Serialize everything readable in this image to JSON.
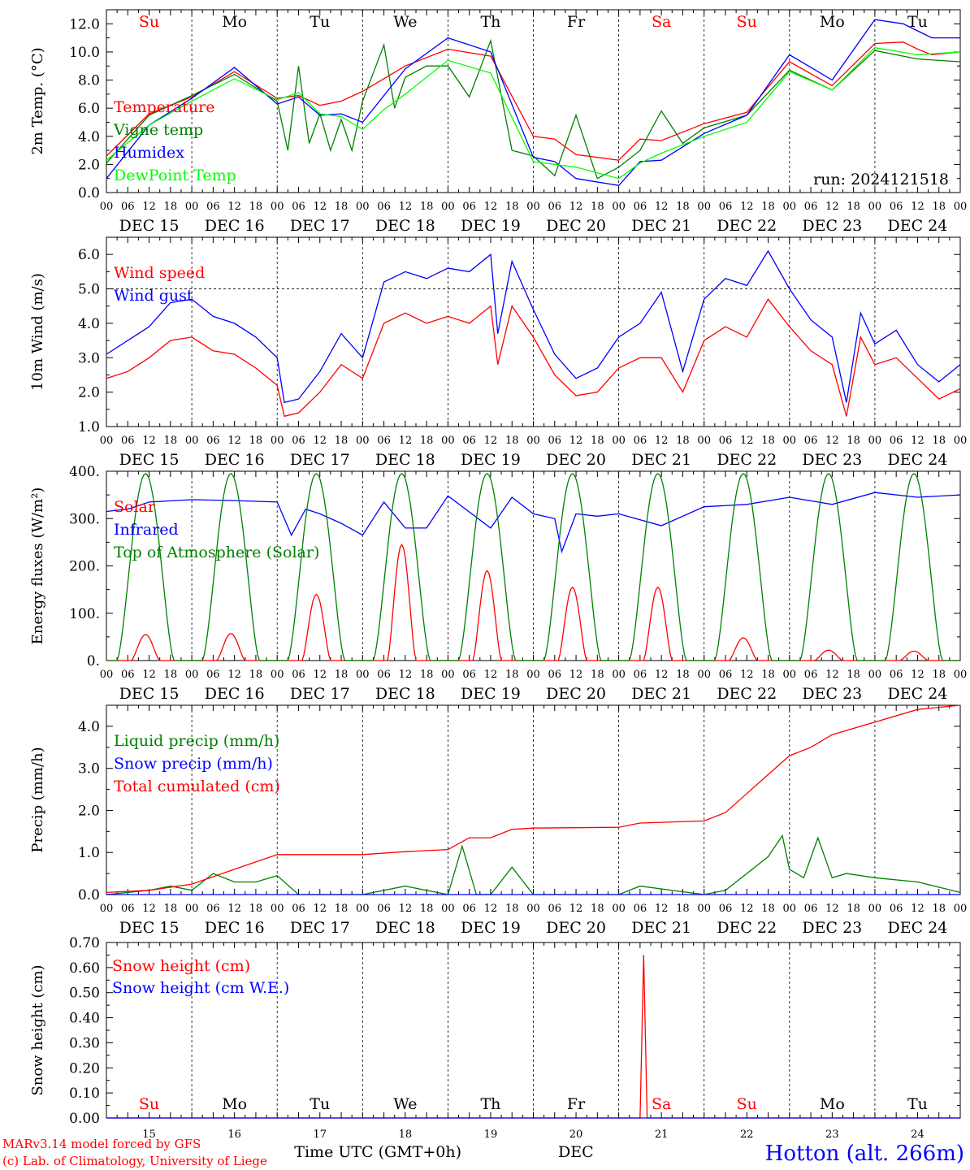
{
  "footer": {
    "credit_line1": "MARv3.14 model forced by GFS",
    "credit_line2": "(c) Lab. of Climatology, University of Liege",
    "xlabel": "Time UTC (GMT+0h)",
    "month": "DEC",
    "station": "Hotton (alt. 266m)",
    "run": "run: 2024121518"
  },
  "time_axis": {
    "hours": [
      "00",
      "06",
      "12",
      "18"
    ],
    "day_labels": [
      "DEC 15",
      "DEC 16",
      "DEC 17",
      "DEC 18",
      "DEC 19",
      "DEC 20",
      "DEC 21",
      "DEC 22",
      "DEC 23",
      "DEC 24"
    ],
    "day_numbers": [
      "15",
      "16",
      "17",
      "18",
      "19",
      "20",
      "21",
      "22",
      "23",
      "24"
    ],
    "weekdays": [
      "Su",
      "Mo",
      "Tu",
      "We",
      "Th",
      "Fr",
      "Sa",
      "Su",
      "Mo",
      "Tu"
    ],
    "weekend_color": "#ff0000",
    "weekday_color": "#000000"
  },
  "chart_data": [
    {
      "type": "line",
      "ylabel": "2m Temp. (°C)",
      "ylim": [
        0,
        13
      ],
      "yticks": [
        "0.0",
        "2.0",
        "4.0",
        "6.0",
        "8.0",
        "10.0",
        "12.0"
      ],
      "grid": "vertical dashed at day boundaries",
      "legend_position": "left",
      "x_unit": "hours since DEC 15 00 UTC",
      "series": [
        {
          "name": "Temperature",
          "color": "#ff0000",
          "x": [
            0,
            12,
            24,
            36,
            48,
            54,
            60,
            66,
            72,
            84,
            96,
            108,
            120,
            126,
            132,
            144,
            150,
            156,
            168,
            180,
            192,
            204,
            216,
            224,
            228,
            232,
            240
          ],
          "y": [
            2.6,
            5.6,
            6.8,
            8.6,
            6.7,
            6.9,
            6.2,
            6.5,
            7.2,
            9.0,
            10.2,
            9.7,
            4.0,
            3.8,
            2.7,
            2.3,
            3.8,
            3.7,
            4.9,
            5.7,
            9.3,
            7.6,
            10.6,
            10.7,
            10.2,
            9.8,
            10.0
          ]
        },
        {
          "name": "Vigne temp",
          "color": "#008000",
          "x": [
            0,
            12,
            24,
            36,
            48,
            51,
            54,
            57,
            60,
            63,
            66,
            69,
            72,
            78,
            81,
            84,
            90,
            96,
            102,
            108,
            114,
            120,
            126,
            132,
            138,
            144,
            150,
            156,
            162,
            168,
            180,
            192,
            204,
            216,
            228,
            240
          ],
          "y": [
            2.1,
            5.5,
            6.9,
            8.4,
            6.5,
            3.0,
            9.0,
            3.5,
            5.6,
            3.0,
            5.2,
            3.0,
            6.5,
            10.5,
            6.0,
            8.2,
            9.0,
            9.0,
            6.8,
            10.8,
            3.0,
            2.6,
            1.2,
            5.5,
            1.0,
            1.8,
            3.0,
            5.8,
            3.5,
            4.6,
            5.5,
            8.7,
            7.3,
            10.1,
            9.5,
            9.3
          ]
        },
        {
          "name": "Humidex",
          "color": "#0000ff",
          "x": [
            0,
            12,
            24,
            36,
            48,
            54,
            60,
            66,
            72,
            84,
            96,
            108,
            120,
            126,
            132,
            144,
            150,
            156,
            168,
            180,
            192,
            204,
            216,
            224,
            228,
            232,
            240
          ],
          "y": [
            1.0,
            4.8,
            6.7,
            8.9,
            6.3,
            6.8,
            5.5,
            5.6,
            5.0,
            8.8,
            11.0,
            10.0,
            2.5,
            2.2,
            1.0,
            0.5,
            2.2,
            2.3,
            4.2,
            5.5,
            9.8,
            8.0,
            12.3,
            12.0,
            11.5,
            11.0,
            11.0
          ]
        },
        {
          "name": "DewPoint Temp",
          "color": "#00ff00",
          "x": [
            0,
            12,
            24,
            36,
            48,
            54,
            60,
            66,
            72,
            78,
            84,
            96,
            108,
            120,
            126,
            132,
            144,
            150,
            156,
            168,
            180,
            192,
            204,
            216,
            228,
            240
          ],
          "y": [
            2.3,
            4.8,
            6.5,
            8.1,
            6.6,
            7.1,
            5.6,
            5.4,
            4.5,
            5.9,
            7.0,
            9.4,
            8.5,
            2.2,
            2.0,
            1.8,
            1.0,
            2.1,
            2.8,
            4.0,
            5.0,
            8.6,
            7.3,
            10.3,
            9.8,
            10.0
          ]
        }
      ]
    },
    {
      "type": "line",
      "ylabel": "10m Wind (m/s)",
      "ylim": [
        1.0,
        6.5
      ],
      "yticks": [
        "1.0",
        "2.0",
        "3.0",
        "4.0",
        "5.0",
        "6.0"
      ],
      "reference_line": 5.0,
      "legend_position": "left",
      "series": [
        {
          "name": "Wind speed",
          "color": "#ff0000",
          "x": [
            0,
            6,
            12,
            18,
            24,
            30,
            36,
            42,
            48,
            50,
            54,
            60,
            66,
            72,
            78,
            84,
            90,
            96,
            102,
            108,
            110,
            114,
            120,
            126,
            132,
            138,
            144,
            150,
            156,
            162,
            168,
            174,
            180,
            186,
            192,
            198,
            204,
            208,
            212,
            216,
            222,
            228,
            234,
            240
          ],
          "y": [
            2.4,
            2.6,
            3.0,
            3.5,
            3.6,
            3.2,
            3.1,
            2.7,
            2.2,
            1.3,
            1.4,
            2.0,
            2.8,
            2.4,
            4.0,
            4.3,
            4.0,
            4.2,
            4.0,
            4.5,
            2.8,
            4.5,
            3.6,
            2.5,
            1.9,
            2.0,
            2.7,
            3.0,
            3.0,
            2.0,
            3.5,
            3.9,
            3.6,
            4.7,
            3.9,
            3.2,
            2.8,
            1.3,
            3.6,
            2.8,
            3.0,
            2.4,
            1.8,
            2.1
          ]
        },
        {
          "name": "Wind gust",
          "color": "#0000ff",
          "x": [
            0,
            6,
            12,
            18,
            24,
            30,
            36,
            42,
            48,
            50,
            54,
            60,
            66,
            72,
            78,
            84,
            90,
            96,
            102,
            108,
            110,
            114,
            120,
            126,
            132,
            138,
            144,
            150,
            156,
            162,
            168,
            174,
            180,
            186,
            192,
            198,
            204,
            208,
            212,
            216,
            222,
            228,
            234,
            240
          ],
          "y": [
            3.1,
            3.5,
            3.9,
            4.6,
            4.7,
            4.2,
            4.0,
            3.6,
            3.0,
            1.7,
            1.8,
            2.6,
            3.7,
            3.0,
            5.2,
            5.5,
            5.3,
            5.6,
            5.5,
            6.0,
            3.7,
            5.8,
            4.4,
            3.1,
            2.4,
            2.7,
            3.6,
            4.0,
            4.9,
            2.6,
            4.7,
            5.3,
            5.1,
            6.1,
            5.0,
            4.1,
            3.6,
            1.7,
            4.3,
            3.4,
            3.8,
            2.8,
            2.3,
            2.8
          ]
        }
      ]
    },
    {
      "type": "line",
      "ylabel": "Energy fluxes (W/m²)",
      "ylim": [
        0,
        400
      ],
      "yticks": [
        "0.",
        "100.",
        "200.",
        "300.",
        "400."
      ],
      "legend_position": "left",
      "series": [
        {
          "name": "Solar",
          "color": "#ff0000",
          "daily_peak_hour": 11,
          "daily_half_width_hours": 4,
          "daily_peaks": [
            55,
            57,
            140,
            245,
            190,
            155,
            155,
            48,
            22,
            20
          ]
        },
        {
          "name": "Infrared",
          "color": "#0000ff",
          "x": [
            0,
            6,
            12,
            24,
            36,
            48,
            52,
            56,
            60,
            66,
            72,
            78,
            84,
            90,
            96,
            108,
            114,
            120,
            126,
            128,
            132,
            138,
            144,
            156,
            168,
            180,
            192,
            204,
            216,
            228,
            240
          ],
          "y": [
            315,
            320,
            335,
            340,
            338,
            335,
            265,
            320,
            310,
            290,
            265,
            335,
            280,
            280,
            348,
            280,
            345,
            310,
            300,
            230,
            310,
            305,
            310,
            285,
            325,
            330,
            345,
            330,
            355,
            345,
            350
          ]
        },
        {
          "name": "Top of Atmosphere (Solar)",
          "color": "#008000",
          "daily_peak_hour": 11,
          "daily_half_width_hours": 8,
          "daily_peaks": [
            395,
            395,
            395,
            395,
            395,
            395,
            395,
            395,
            395,
            395
          ]
        }
      ]
    },
    {
      "type": "line",
      "ylabel": "Precip (mm/h)",
      "ylim": [
        0,
        4.5
      ],
      "yticks": [
        "0.0",
        "1.0",
        "2.0",
        "3.0",
        "4.0"
      ],
      "legend_position": "left",
      "series": [
        {
          "name": "Liquid precip (mm/h)",
          "color": "#008000",
          "x": [
            0,
            12,
            18,
            24,
            30,
            36,
            42,
            48,
            54,
            72,
            84,
            96,
            100,
            104,
            108,
            114,
            120,
            132,
            144,
            150,
            168,
            174,
            180,
            186,
            190,
            192,
            196,
            200,
            204,
            208,
            216,
            228,
            240
          ],
          "y": [
            0,
            0.1,
            0.2,
            0.1,
            0.5,
            0.3,
            0.3,
            0.45,
            0,
            0,
            0.2,
            0,
            1.15,
            0,
            0,
            0.65,
            0,
            0,
            0,
            0.2,
            0,
            0.1,
            0.5,
            0.9,
            1.4,
            0.6,
            0.4,
            1.35,
            0.4,
            0.5,
            0.4,
            0.3,
            0.05
          ]
        },
        {
          "name": "Snow precip (mm/h)",
          "color": "#0000ff",
          "x": [
            0,
            240
          ],
          "y": [
            0,
            0
          ]
        },
        {
          "name": "Total cumulated (cm)",
          "color": "#ff0000",
          "x": [
            0,
            12,
            24,
            36,
            48,
            72,
            84,
            96,
            102,
            108,
            114,
            120,
            144,
            150,
            168,
            174,
            180,
            186,
            192,
            198,
            204,
            216,
            228,
            240
          ],
          "y": [
            0.05,
            0.1,
            0.25,
            0.6,
            0.95,
            0.95,
            1.02,
            1.07,
            1.35,
            1.35,
            1.55,
            1.58,
            1.6,
            1.7,
            1.75,
            1.95,
            2.4,
            2.85,
            3.3,
            3.5,
            3.8,
            4.1,
            4.4,
            4.5
          ]
        }
      ]
    },
    {
      "type": "line",
      "ylabel": "Snow height (cm)",
      "ylim": [
        0,
        0.7
      ],
      "yticks": [
        "0.00",
        "0.10",
        "0.20",
        "0.30",
        "0.40",
        "0.50",
        "0.60",
        "0.70"
      ],
      "legend_position": "left",
      "series": [
        {
          "name": "Snow height (cm)",
          "color": "#ff0000",
          "x": [
            0,
            150,
            151,
            152,
            240
          ],
          "y": [
            0,
            0,
            0.65,
            0,
            0
          ]
        },
        {
          "name": "Snow height (cm W.E.)",
          "color": "#0000ff",
          "x": [
            0,
            240
          ],
          "y": [
            0,
            0
          ]
        }
      ]
    }
  ]
}
